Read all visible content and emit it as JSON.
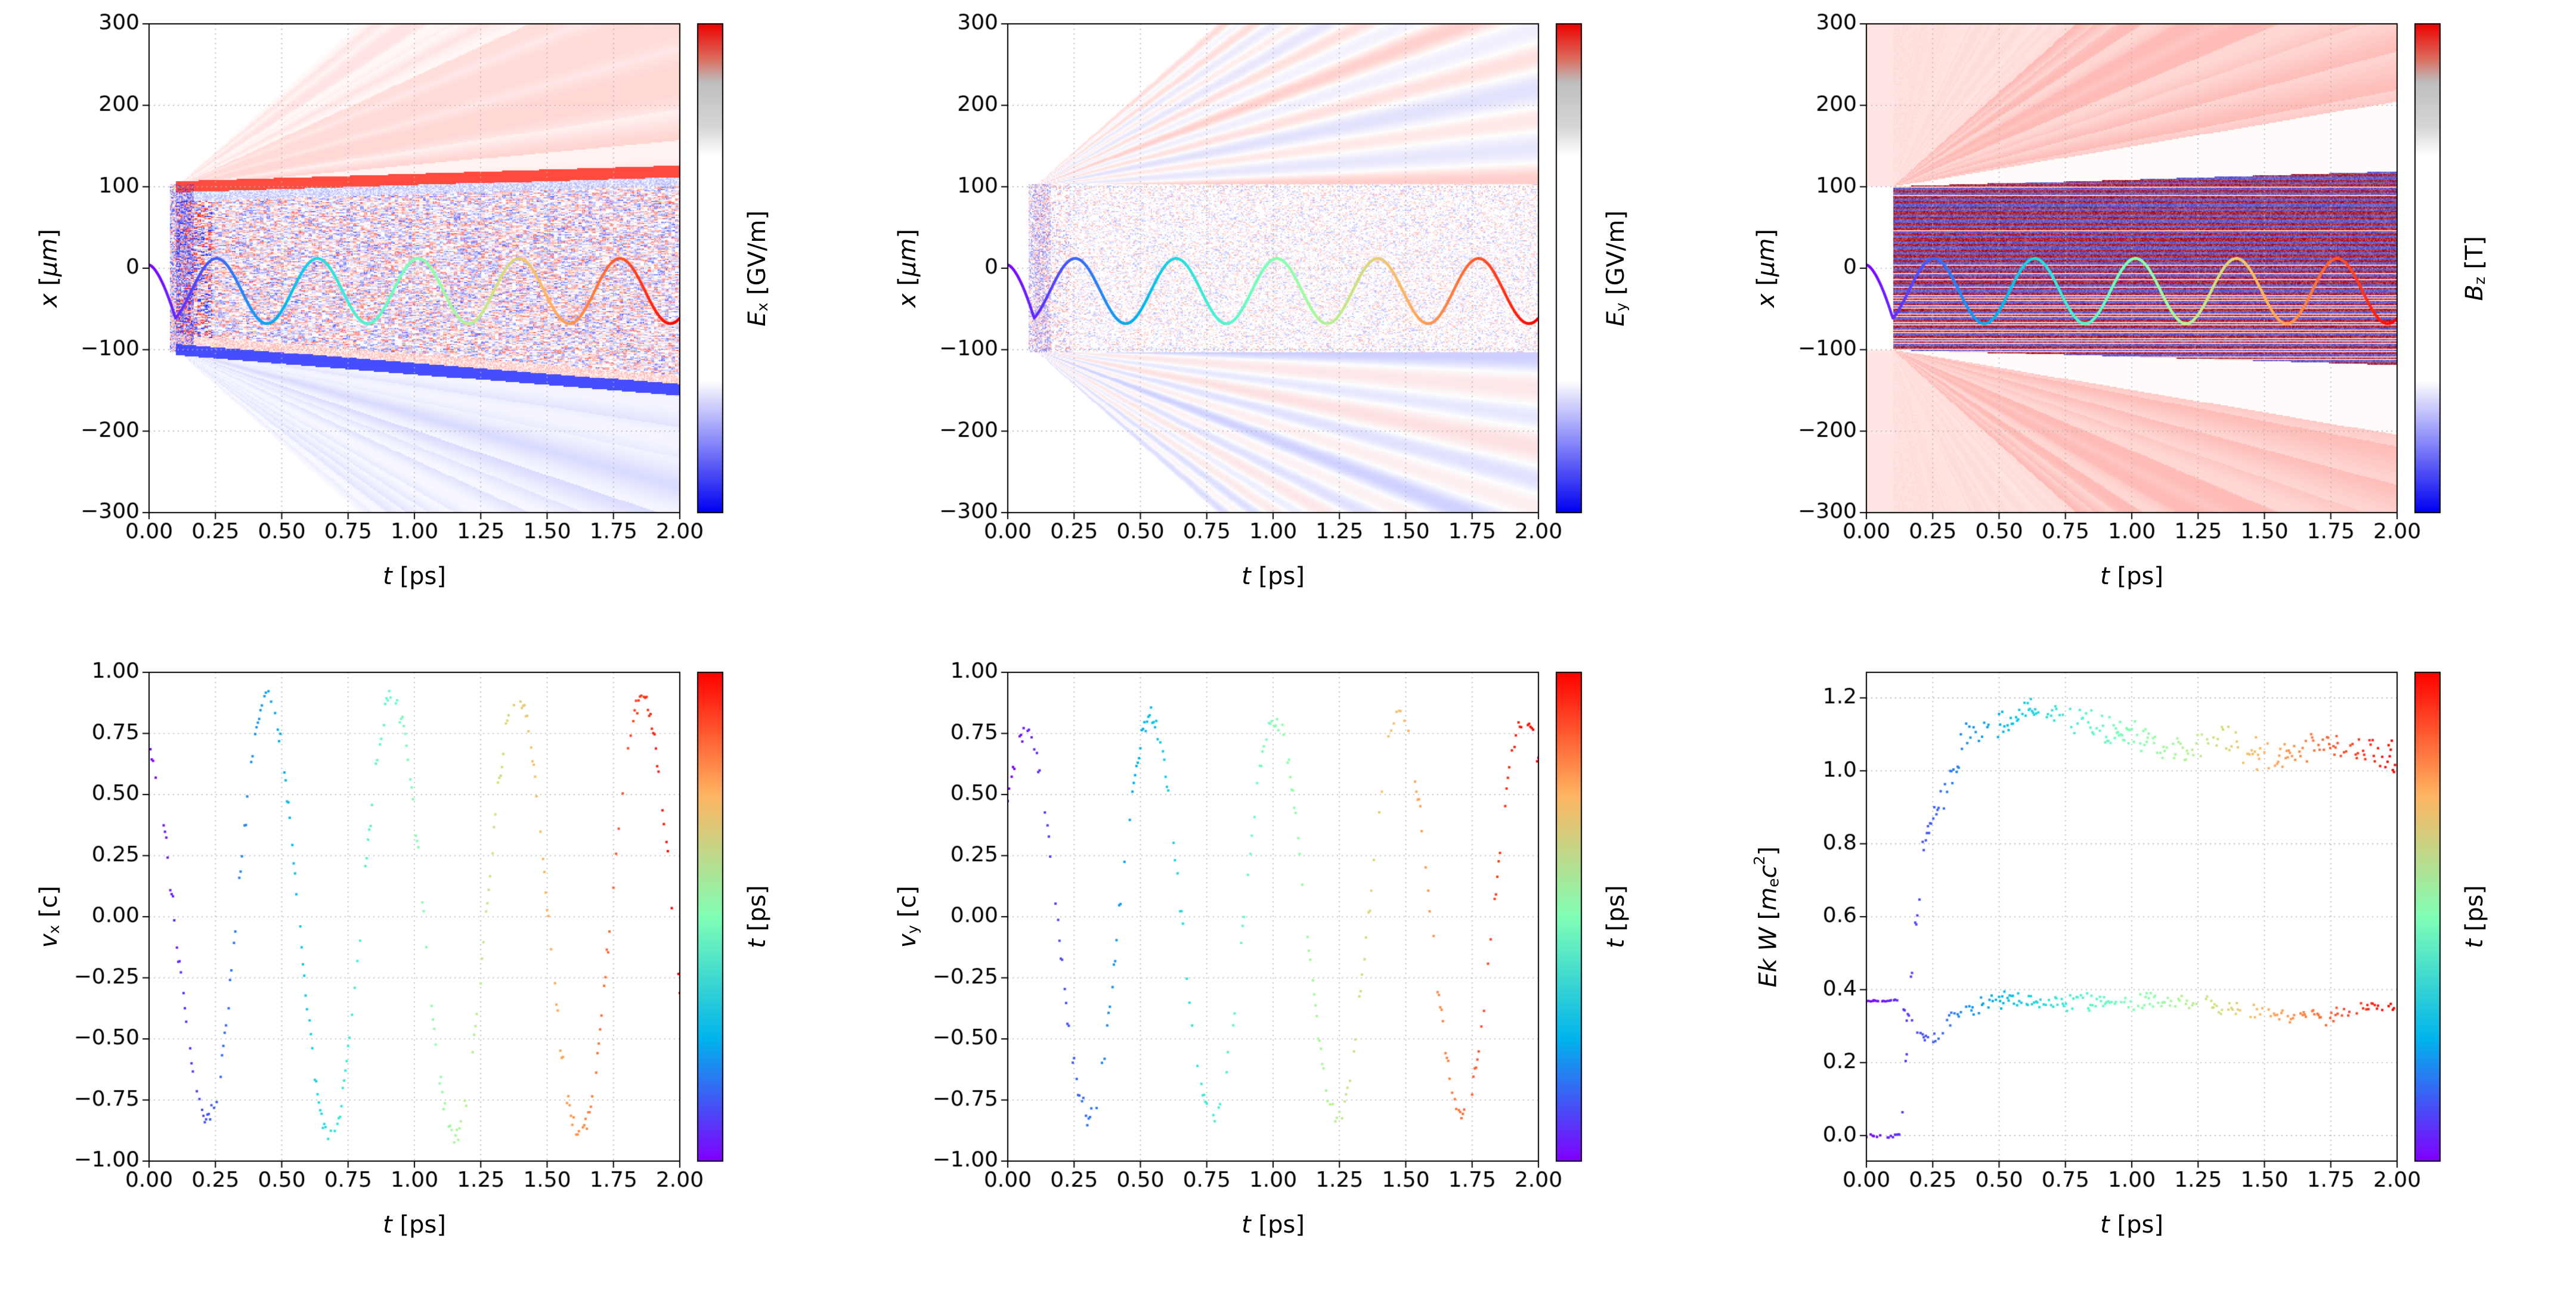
{
  "figure": {
    "background": "#ffffff",
    "grid_color": "#b5b5b5",
    "axis_color": "#000000",
    "rainbow_stops": [
      [
        0,
        "#8000ff"
      ],
      [
        0.25,
        "#00b4ec"
      ],
      [
        0.5,
        "#80ffb5"
      ],
      [
        0.75,
        "#ffb461"
      ],
      [
        1,
        "#ff0000"
      ]
    ],
    "field_stops": [
      [
        0,
        "#0000f2"
      ],
      [
        0.27,
        "#ffffff"
      ],
      [
        0.73,
        "#ffffff"
      ],
      [
        0.79,
        "#d6d6d6"
      ],
      [
        0.88,
        "#bfbfbf"
      ],
      [
        0.93,
        "#dd6a5c"
      ],
      [
        1,
        "#ee0000"
      ]
    ]
  },
  "chart_data": [
    {
      "id": "ex-field",
      "type": "heatmap",
      "xlabel_parts": [
        {
          "t": "t",
          "s": "it"
        },
        {
          "t": "  [ps]",
          "s": ""
        }
      ],
      "ylabel_parts": [
        {
          "t": "x",
          "s": "it"
        },
        {
          "t": "  [",
          "s": ""
        },
        {
          "t": "μm",
          "s": "it"
        },
        {
          "t": "]",
          "s": ""
        }
      ],
      "cbar_parts": [
        {
          "t": "E",
          "s": "it"
        },
        {
          "t": "x",
          "s": "sub"
        },
        {
          "t": "  [GV/m]",
          "s": ""
        }
      ],
      "xlim": [
        0,
        2
      ],
      "ylim": [
        -300,
        300
      ],
      "xtick_vals": [
        0,
        0.25,
        0.5,
        0.75,
        1,
        1.25,
        1.5,
        1.75,
        2
      ],
      "xtick_labels": [
        "0.00",
        "0.25",
        "0.50",
        "0.75",
        "1.00",
        "1.25",
        "1.50",
        "1.75",
        "2.00"
      ],
      "ytick_vals": [
        300,
        200,
        100,
        0,
        -100,
        -200,
        -300
      ],
      "ytick_labels": [
        "300",
        "200",
        "100",
        "0",
        "−100",
        "−200",
        "−300"
      ],
      "colorbar": {
        "stops": [
          [
            0,
            "#0000f2"
          ],
          [
            0.27,
            "#ffffff"
          ],
          [
            0.73,
            "#ffffff"
          ],
          [
            0.79,
            "#d6d6d6"
          ],
          [
            0.88,
            "#bfbfbf"
          ],
          [
            0.93,
            "#dd6a5c"
          ],
          [
            1,
            "#ee0000"
          ]
        ]
      },
      "field": {
        "kind": "ex",
        "t_on": 0.1,
        "band_halfwidth": 100,
        "cone_slope": 290,
        "inner_slope_top": 10,
        "inner_slope_bot": 26,
        "speckle_strength": 0.5,
        "cone_alpha": 0.21,
        "pos_rgb": [
          255,
          42,
          28
        ],
        "neg_rgb": [
          36,
          46,
          255
        ]
      },
      "trajectory": {
        "t_on": 0.1,
        "x_start": 4,
        "x_dip": -62,
        "center": -28,
        "amplitude": 40,
        "period_ps": 0.38,
        "phase": -0.98,
        "width": 4.5
      }
    },
    {
      "id": "ey-field",
      "type": "heatmap",
      "xlabel_parts": [
        {
          "t": "t",
          "s": "it"
        },
        {
          "t": "  [ps]",
          "s": ""
        }
      ],
      "ylabel_parts": [
        {
          "t": "x",
          "s": "it"
        },
        {
          "t": "  [",
          "s": ""
        },
        {
          "t": "μm",
          "s": "it"
        },
        {
          "t": "]",
          "s": ""
        }
      ],
      "cbar_parts": [
        {
          "t": "E",
          "s": "it"
        },
        {
          "t": "y",
          "s": "sub"
        },
        {
          "t": "  [GV/m]",
          "s": ""
        }
      ],
      "xlim": [
        0,
        2
      ],
      "ylim": [
        -300,
        300
      ],
      "xtick_vals": [
        0,
        0.25,
        0.5,
        0.75,
        1,
        1.25,
        1.5,
        1.75,
        2
      ],
      "xtick_labels": [
        "0.00",
        "0.25",
        "0.50",
        "0.75",
        "1.00",
        "1.25",
        "1.50",
        "1.75",
        "2.00"
      ],
      "ytick_vals": [
        300,
        200,
        100,
        0,
        -100,
        -200,
        -300
      ],
      "ytick_labels": [
        "300",
        "200",
        "100",
        "0",
        "−100",
        "−200",
        "−300"
      ],
      "colorbar": {
        "stops": [
          [
            0,
            "#0000f2"
          ],
          [
            0.27,
            "#ffffff"
          ],
          [
            0.73,
            "#ffffff"
          ],
          [
            0.79,
            "#d6d6d6"
          ],
          [
            0.88,
            "#bfbfbf"
          ],
          [
            0.93,
            "#dd6a5c"
          ],
          [
            1,
            "#ee0000"
          ]
        ]
      },
      "field": {
        "kind": "ey",
        "t_on": 0.1,
        "band_halfwidth": 100,
        "cone_slope": 290,
        "speckle_strength": 0.32,
        "cone_alpha": 0.17,
        "pos_rgb": [
          255,
          42,
          28
        ],
        "neg_rgb": [
          36,
          46,
          255
        ]
      },
      "trajectory": {
        "t_on": 0.1,
        "x_start": 4,
        "x_dip": -62,
        "center": -28,
        "amplitude": 40,
        "period_ps": 0.38,
        "phase": -0.98,
        "width": 4.5
      }
    },
    {
      "id": "bz-field",
      "type": "heatmap",
      "xlabel_parts": [
        {
          "t": "t",
          "s": "it"
        },
        {
          "t": "  [ps]",
          "s": ""
        }
      ],
      "ylabel_parts": [
        {
          "t": "x",
          "s": "it"
        },
        {
          "t": "  [",
          "s": ""
        },
        {
          "t": "μm",
          "s": "it"
        },
        {
          "t": "]",
          "s": ""
        }
      ],
      "cbar_parts": [
        {
          "t": "B",
          "s": "it"
        },
        {
          "t": "z",
          "s": "sub"
        },
        {
          "t": "  [T]",
          "s": ""
        }
      ],
      "xlim": [
        0,
        2
      ],
      "ylim": [
        -300,
        300
      ],
      "xtick_vals": [
        0,
        0.25,
        0.5,
        0.75,
        1,
        1.25,
        1.5,
        1.75,
        2
      ],
      "xtick_labels": [
        "0.00",
        "0.25",
        "0.50",
        "0.75",
        "1.00",
        "1.25",
        "1.50",
        "1.75",
        "2.00"
      ],
      "ytick_vals": [
        300,
        200,
        100,
        0,
        -100,
        -200,
        -300
      ],
      "ytick_labels": [
        "300",
        "200",
        "100",
        "0",
        "−100",
        "−200",
        "−300"
      ],
      "colorbar": {
        "stops": [
          [
            0,
            "#0000f2"
          ],
          [
            0.27,
            "#ffffff"
          ],
          [
            0.73,
            "#ffffff"
          ],
          [
            0.79,
            "#d6d6d6"
          ],
          [
            0.88,
            "#bfbfbf"
          ],
          [
            0.93,
            "#dd6a5c"
          ],
          [
            1,
            "#ee0000"
          ]
        ]
      },
      "field": {
        "kind": "bz",
        "t_on": 0.1,
        "band_halfwidth": 100,
        "cone_slope": 290,
        "white_in": 10,
        "white_out": 55,
        "pos_rgb": [
          252,
          60,
          45
        ],
        "neg_rgb": [
          36,
          46,
          255
        ],
        "stripe_pos_rgb": [
          160,
          8,
          28
        ],
        "stripe_neg_rgb": [
          40,
          40,
          195
        ]
      },
      "trajectory": {
        "t_on": 0.1,
        "x_start": 4,
        "x_dip": -62,
        "center": -28,
        "amplitude": 40,
        "period_ps": 0.38,
        "phase": -0.98,
        "width": 4.5
      }
    },
    {
      "id": "vx-scatter",
      "type": "scatter",
      "xlabel_parts": [
        {
          "t": "t",
          "s": "it"
        },
        {
          "t": "  [ps]",
          "s": ""
        }
      ],
      "ylabel_parts": [
        {
          "t": "v",
          "s": "it"
        },
        {
          "t": "x",
          "s": "sub"
        },
        {
          "t": " [c]",
          "s": ""
        }
      ],
      "cbar_parts": [
        {
          "t": "t",
          "s": "it"
        },
        {
          "t": "  [ps]",
          "s": ""
        }
      ],
      "xlim": [
        0,
        2
      ],
      "ylim": [
        -1,
        1
      ],
      "xtick_vals": [
        0,
        0.25,
        0.5,
        0.75,
        1,
        1.25,
        1.5,
        1.75,
        2
      ],
      "xtick_labels": [
        "0.00",
        "0.25",
        "0.50",
        "0.75",
        "1.00",
        "1.25",
        "1.50",
        "1.75",
        "2.00"
      ],
      "ytick_vals": [
        1,
        0.75,
        0.5,
        0.25,
        0,
        -0.25,
        -0.5,
        -0.75,
        -1
      ],
      "ytick_labels": [
        "1.00",
        "0.75",
        "0.50",
        "0.25",
        "0.00",
        "−0.25",
        "−0.50",
        "−0.75",
        "−1.00"
      ],
      "colorbar": {
        "stops": [
          [
            0,
            "#8000ff"
          ],
          [
            0.25,
            "#00b4ec"
          ],
          [
            0.5,
            "#80ffb5"
          ],
          [
            0.75,
            "#ffb461"
          ],
          [
            1,
            "#ff0000"
          ]
        ]
      },
      "series": [
        {
          "kind": "osc",
          "seed": 7,
          "t_range": [
            0,
            2
          ],
          "dt": 0.005,
          "amp0": 0.72,
          "amp1": 0.9,
          "amp_ramp_t": 0.35,
          "period_ps": 0.47,
          "phase": 0.3,
          "noise": 0.035,
          "dropout": 0.35
        }
      ],
      "color_by": "t_ps",
      "color_range": [
        0,
        2
      ]
    },
    {
      "id": "vy-scatter",
      "type": "scatter",
      "xlabel_parts": [
        {
          "t": "t",
          "s": "it"
        },
        {
          "t": "  [ps]",
          "s": ""
        }
      ],
      "ylabel_parts": [
        {
          "t": "v",
          "s": "it"
        },
        {
          "t": "y",
          "s": "sub"
        },
        {
          "t": " [c]",
          "s": ""
        }
      ],
      "cbar_parts": [
        {
          "t": "t",
          "s": "it"
        },
        {
          "t": "  [ps]",
          "s": ""
        }
      ],
      "xlim": [
        0,
        2
      ],
      "ylim": [
        -1,
        1
      ],
      "xtick_vals": [
        0,
        0.25,
        0.5,
        0.75,
        1,
        1.25,
        1.5,
        1.75,
        2
      ],
      "xtick_labels": [
        "0.00",
        "0.25",
        "0.50",
        "0.75",
        "1.00",
        "1.25",
        "1.50",
        "1.75",
        "2.00"
      ],
      "ytick_vals": [
        1,
        0.75,
        0.5,
        0.25,
        0,
        -0.25,
        -0.5,
        -0.75,
        -1
      ],
      "ytick_labels": [
        "1.00",
        "0.75",
        "0.50",
        "0.25",
        "0.00",
        "−0.25",
        "−0.50",
        "−0.75",
        "−1.00"
      ],
      "colorbar": {
        "stops": [
          [
            0,
            "#8000ff"
          ],
          [
            0.25,
            "#00b4ec"
          ],
          [
            0.5,
            "#80ffb5"
          ],
          [
            0.75,
            "#ffb461"
          ],
          [
            1,
            "#ff0000"
          ]
        ]
      },
      "series": [
        {
          "kind": "osc",
          "seed": 11,
          "t_range": [
            0,
            2
          ],
          "dt": 0.005,
          "amp0": 0.75,
          "amp1": 0.82,
          "amp_ramp_t": 0.35,
          "period_ps": 0.47,
          "phase": -0.9,
          "noise": 0.035,
          "dropout": 0.38
        }
      ],
      "color_by": "t_ps",
      "color_range": [
        0,
        2
      ]
    },
    {
      "id": "energy-scatter",
      "type": "scatter",
      "xlabel_parts": [
        {
          "t": "t",
          "s": "it"
        },
        {
          "t": "  [ps]",
          "s": ""
        }
      ],
      "ylabel_parts": [
        {
          "t": "Ek W",
          "s": "it"
        },
        {
          "t": " [",
          "s": ""
        },
        {
          "t": "m",
          "s": "it"
        },
        {
          "t": "e",
          "s": "sub"
        },
        {
          "t": "c",
          "s": "it"
        },
        {
          "t": "2",
          "s": "sup"
        },
        {
          "t": "]",
          "s": ""
        }
      ],
      "cbar_parts": [
        {
          "t": "t",
          "s": "it"
        },
        {
          "t": "  [ps]",
          "s": ""
        }
      ],
      "xlim": [
        0,
        2
      ],
      "ylim": [
        -0.07,
        1.27
      ],
      "xtick_vals": [
        0,
        0.25,
        0.5,
        0.75,
        1,
        1.25,
        1.5,
        1.75,
        2
      ],
      "xtick_labels": [
        "0.00",
        "0.25",
        "0.50",
        "0.75",
        "1.00",
        "1.25",
        "1.50",
        "1.75",
        "2.00"
      ],
      "ytick_vals": [
        1.2,
        1.0,
        0.8,
        0.6,
        0.4,
        0.2,
        0.0
      ],
      "ytick_labels": [
        "1.2",
        "1.0",
        "0.8",
        "0.6",
        "0.4",
        "0.2",
        "0.0"
      ],
      "colorbar": {
        "stops": [
          [
            0,
            "#8000ff"
          ],
          [
            0.25,
            "#00b4ec"
          ],
          [
            0.5,
            "#80ffb5"
          ],
          [
            0.75,
            "#ffb461"
          ],
          [
            1,
            "#ff0000"
          ]
        ]
      },
      "series": [
        {
          "kind": "anchors",
          "seed": 13,
          "dt": 0.004,
          "dropout": 0.45,
          "noise": 0.035,
          "crisp_before_t": 0.15,
          "points": [
            [
              0,
              0
            ],
            [
              0.13,
              0
            ],
            [
              0.17,
              0.45
            ],
            [
              0.22,
              0.82
            ],
            [
              0.3,
              0.95
            ],
            [
              0.38,
              1.1
            ],
            [
              0.5,
              1.12
            ],
            [
              0.62,
              1.17
            ],
            [
              0.75,
              1.15
            ],
            [
              0.9,
              1.12
            ],
            [
              1.05,
              1.08
            ],
            [
              1.2,
              1.05
            ],
            [
              1.35,
              1.1
            ],
            [
              1.5,
              1.03
            ],
            [
              1.65,
              1.06
            ],
            [
              1.8,
              1.07
            ],
            [
              2,
              1.04
            ]
          ]
        },
        {
          "kind": "anchors",
          "seed": 17,
          "dt": 0.004,
          "dropout": 0.5,
          "noise": 0.022,
          "crisp_before_t": 0.15,
          "points": [
            [
              0,
              0.37
            ],
            [
              0.12,
              0.37
            ],
            [
              0.18,
              0.3
            ],
            [
              0.25,
              0.26
            ],
            [
              0.32,
              0.33
            ],
            [
              0.42,
              0.36
            ],
            [
              0.55,
              0.37
            ],
            [
              0.7,
              0.36
            ],
            [
              0.85,
              0.37
            ],
            [
              1,
              0.36
            ],
            [
              1.15,
              0.37
            ],
            [
              1.3,
              0.36
            ],
            [
              1.45,
              0.34
            ],
            [
              1.6,
              0.33
            ],
            [
              1.75,
              0.33
            ],
            [
              1.9,
              0.35
            ],
            [
              2,
              0.35
            ]
          ]
        }
      ],
      "color_by": "t_ps",
      "color_range": [
        0,
        2
      ]
    }
  ]
}
